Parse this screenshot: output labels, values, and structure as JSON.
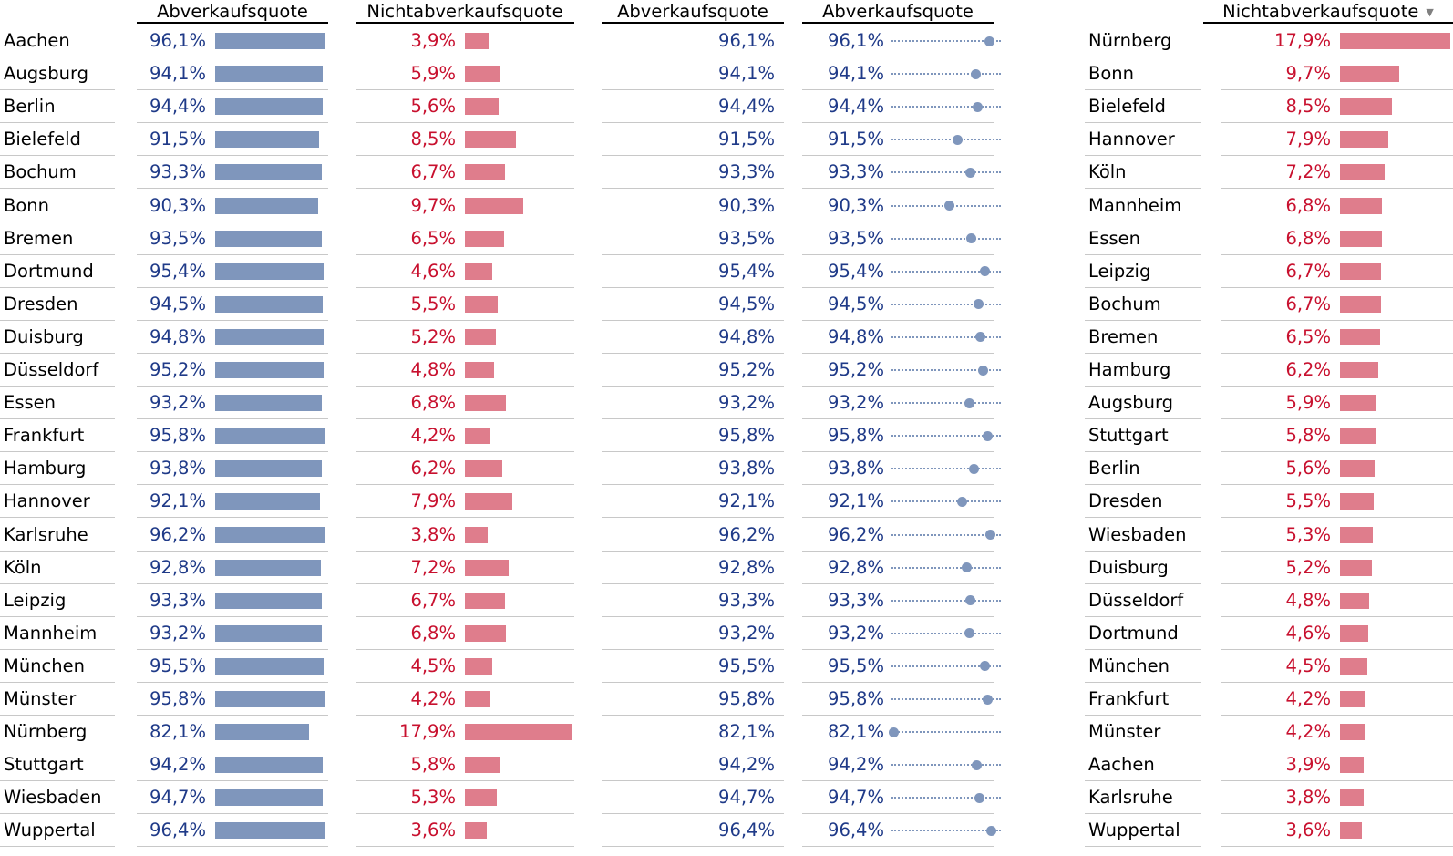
{
  "headers": {
    "h1": "Abverkaufsquote",
    "h2": "Nichtabverkaufsquote",
    "h3": "Abverkaufsquote",
    "h4": "Abverkaufsquote",
    "h5": "Nichtabverkaufsquote",
    "sort_icon": "sort-descending-icon"
  },
  "colors": {
    "blue_text": "#1f3a88",
    "blue_bar": "#7f96bc",
    "red_text": "#c8102e",
    "red_bar": "#df7d8c"
  },
  "chart_data": [
    {
      "type": "table",
      "columns": [
        "",
        "Abverkaufsquote",
        "Nichtabverkaufsquote",
        "Abverkaufsquote",
        "Abverkaufsquote"
      ],
      "rows": [
        {
          "city": "Aachen",
          "abv": "96,1%",
          "nab": "3,9%",
          "abv_v": 96.1,
          "nab_v": 3.9
        },
        {
          "city": "Augsburg",
          "abv": "94,1%",
          "nab": "5,9%",
          "abv_v": 94.1,
          "nab_v": 5.9
        },
        {
          "city": "Berlin",
          "abv": "94,4%",
          "nab": "5,6%",
          "abv_v": 94.4,
          "nab_v": 5.6
        },
        {
          "city": "Bielefeld",
          "abv": "91,5%",
          "nab": "8,5%",
          "abv_v": 91.5,
          "nab_v": 8.5
        },
        {
          "city": "Bochum",
          "abv": "93,3%",
          "nab": "6,7%",
          "abv_v": 93.3,
          "nab_v": 6.7
        },
        {
          "city": "Bonn",
          "abv": "90,3%",
          "nab": "9,7%",
          "abv_v": 90.3,
          "nab_v": 9.7
        },
        {
          "city": "Bremen",
          "abv": "93,5%",
          "nab": "6,5%",
          "abv_v": 93.5,
          "nab_v": 6.5
        },
        {
          "city": "Dortmund",
          "abv": "95,4%",
          "nab": "4,6%",
          "abv_v": 95.4,
          "nab_v": 4.6
        },
        {
          "city": "Dresden",
          "abv": "94,5%",
          "nab": "5,5%",
          "abv_v": 94.5,
          "nab_v": 5.5
        },
        {
          "city": "Duisburg",
          "abv": "94,8%",
          "nab": "5,2%",
          "abv_v": 94.8,
          "nab_v": 5.2
        },
        {
          "city": "Düsseldorf",
          "abv": "95,2%",
          "nab": "4,8%",
          "abv_v": 95.2,
          "nab_v": 4.8
        },
        {
          "city": "Essen",
          "abv": "93,2%",
          "nab": "6,8%",
          "abv_v": 93.2,
          "nab_v": 6.8
        },
        {
          "city": "Frankfurt",
          "abv": "95,8%",
          "nab": "4,2%",
          "abv_v": 95.8,
          "nab_v": 4.2
        },
        {
          "city": "Hamburg",
          "abv": "93,8%",
          "nab": "6,2%",
          "abv_v": 93.8,
          "nab_v": 6.2
        },
        {
          "city": "Hannover",
          "abv": "92,1%",
          "nab": "7,9%",
          "abv_v": 92.1,
          "nab_v": 7.9
        },
        {
          "city": "Karlsruhe",
          "abv": "96,2%",
          "nab": "3,8%",
          "abv_v": 96.2,
          "nab_v": 3.8
        },
        {
          "city": "Köln",
          "abv": "92,8%",
          "nab": "7,2%",
          "abv_v": 92.8,
          "nab_v": 7.2
        },
        {
          "city": "Leipzig",
          "abv": "93,3%",
          "nab": "6,7%",
          "abv_v": 93.3,
          "nab_v": 6.7
        },
        {
          "city": "Mannheim",
          "abv": "93,2%",
          "nab": "6,8%",
          "abv_v": 93.2,
          "nab_v": 6.8
        },
        {
          "city": "München",
          "abv": "95,5%",
          "nab": "4,5%",
          "abv_v": 95.5,
          "nab_v": 4.5
        },
        {
          "city": "Münster",
          "abv": "95,8%",
          "nab": "4,2%",
          "abv_v": 95.8,
          "nab_v": 4.2
        },
        {
          "city": "Nürnberg",
          "abv": "82,1%",
          "nab": "17,9%",
          "abv_v": 82.1,
          "nab_v": 17.9
        },
        {
          "city": "Stuttgart",
          "abv": "94,2%",
          "nab": "5,8%",
          "abv_v": 94.2,
          "nab_v": 5.8
        },
        {
          "city": "Wiesbaden",
          "abv": "94,7%",
          "nab": "5,3%",
          "abv_v": 94.7,
          "nab_v": 5.3
        },
        {
          "city": "Wuppertal",
          "abv": "96,4%",
          "nab": "3,6%",
          "abv_v": 96.4,
          "nab_v": 3.6
        }
      ]
    },
    {
      "type": "bar",
      "sorted": "descending",
      "columns": [
        "",
        "Nichtabverkaufsquote"
      ],
      "rows": [
        {
          "city": "Nürnberg",
          "label": "17,9%",
          "value": 17.9
        },
        {
          "city": "Bonn",
          "label": "9,7%",
          "value": 9.7
        },
        {
          "city": "Bielefeld",
          "label": "8,5%",
          "value": 8.5
        },
        {
          "city": "Hannover",
          "label": "7,9%",
          "value": 7.9
        },
        {
          "city": "Köln",
          "label": "7,2%",
          "value": 7.2
        },
        {
          "city": "Mannheim",
          "label": "6,8%",
          "value": 6.8
        },
        {
          "city": "Essen",
          "label": "6,8%",
          "value": 6.8
        },
        {
          "city": "Leipzig",
          "label": "6,7%",
          "value": 6.7
        },
        {
          "city": "Bochum",
          "label": "6,7%",
          "value": 6.7
        },
        {
          "city": "Bremen",
          "label": "6,5%",
          "value": 6.5
        },
        {
          "city": "Hamburg",
          "label": "6,2%",
          "value": 6.2
        },
        {
          "city": "Augsburg",
          "label": "5,9%",
          "value": 5.9
        },
        {
          "city": "Stuttgart",
          "label": "5,8%",
          "value": 5.8
        },
        {
          "city": "Berlin",
          "label": "5,6%",
          "value": 5.6
        },
        {
          "city": "Dresden",
          "label": "5,5%",
          "value": 5.5
        },
        {
          "city": "Wiesbaden",
          "label": "5,3%",
          "value": 5.3
        },
        {
          "city": "Duisburg",
          "label": "5,2%",
          "value": 5.2
        },
        {
          "city": "Düsseldorf",
          "label": "4,8%",
          "value": 4.8
        },
        {
          "city": "Dortmund",
          "label": "4,6%",
          "value": 4.6
        },
        {
          "city": "München",
          "label": "4,5%",
          "value": 4.5
        },
        {
          "city": "Frankfurt",
          "label": "4,2%",
          "value": 4.2
        },
        {
          "city": "Münster",
          "label": "4,2%",
          "value": 4.2
        },
        {
          "city": "Aachen",
          "label": "3,9%",
          "value": 3.9
        },
        {
          "city": "Karlsruhe",
          "label": "3,8%",
          "value": 3.8
        },
        {
          "city": "Wuppertal",
          "label": "3,6%",
          "value": 3.6
        }
      ]
    }
  ]
}
